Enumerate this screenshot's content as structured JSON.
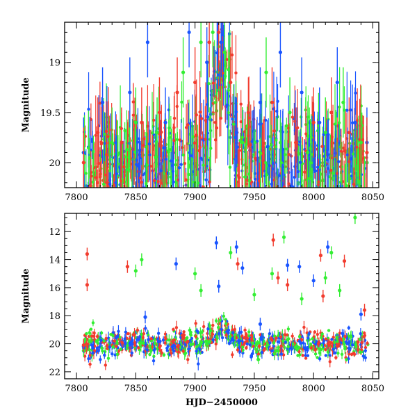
{
  "chart_data": [
    {
      "type": "scatter",
      "title": "",
      "xlabel": "",
      "ylabel": "Magnitude",
      "xlim": [
        7790,
        8055
      ],
      "ylim": [
        20.25,
        18.6
      ],
      "y_inverted": true,
      "xticks": [
        7800,
        7850,
        7900,
        7950,
        8000,
        8050
      ],
      "yticks": [
        19,
        19.5,
        20
      ],
      "ytick_labels": [
        "19",
        "19.5",
        "20"
      ],
      "grid": false,
      "legend": "none",
      "series": [
        {
          "color": "#33ee33",
          "x": [
            7806,
            7830,
            7850,
            7868,
            7890,
            7905,
            7915,
            7925,
            7940,
            7960,
            7980,
            7995,
            8010,
            8025,
            8040,
            8045
          ],
          "y": [
            19.9,
            19.8,
            19.6,
            19.7,
            19.1,
            18.8,
            18.7,
            18.9,
            19.8,
            19.1,
            19.5,
            19.9,
            19.7,
            19.4,
            19.8,
            20.0
          ]
        },
        {
          "color": "#1a55ff",
          "x": [
            7806,
            7822,
            7845,
            7860,
            7875,
            7895,
            7910,
            7922,
            7935,
            7955,
            7972,
            7990,
            8005,
            8020,
            8035,
            8045
          ],
          "y": [
            19.9,
            19.4,
            19.3,
            18.8,
            19.6,
            18.7,
            19.0,
            18.8,
            19.7,
            19.4,
            18.9,
            19.3,
            19.6,
            19.2,
            19.6,
            19.8
          ]
        },
        {
          "color": "#f23c2e",
          "x": [
            7806,
            7818,
            7838,
            7855,
            7870,
            7885,
            7900,
            7912,
            7920,
            7930,
            7945,
            7965,
            7985,
            8000,
            8015,
            8030,
            8045
          ],
          "y": [
            20.0,
            19.7,
            19.8,
            19.6,
            19.5,
            19.3,
            19.2,
            18.8,
            18.7,
            19.2,
            19.5,
            19.4,
            19.8,
            19.6,
            19.5,
            19.7,
            19.9
          ]
        }
      ]
    },
    {
      "type": "scatter",
      "title": "",
      "xlabel": "HJD−2450000",
      "ylabel": "Magnitude",
      "xlim": [
        7790,
        8055
      ],
      "ylim": [
        22.5,
        10.7
      ],
      "y_inverted": true,
      "xticks": [
        7800,
        7850,
        7900,
        7950,
        8000,
        8050
      ],
      "yticks": [
        12,
        14,
        16,
        18,
        20,
        22
      ],
      "ytick_labels": [
        "12",
        "14",
        "16",
        "18",
        "20",
        "22"
      ],
      "grid": false,
      "legend": "none",
      "series": [
        {
          "color": "#33ee33",
          "x": [
            7806,
            7850,
            7855,
            7900,
            7905,
            7930,
            7950,
            7965,
            7975,
            7990,
            8010,
            8015,
            8022,
            8035
          ],
          "y": [
            20.5,
            14.8,
            14.0,
            15.0,
            16.2,
            13.5,
            16.5,
            15.0,
            12.4,
            16.8,
            15.3,
            13.5,
            16.2,
            11.0
          ]
        },
        {
          "color": "#1a55ff",
          "x": [
            7806,
            7858,
            7884,
            7918,
            7920,
            7935,
            7940,
            7955,
            7978,
            7988,
            8000,
            8012,
            8040
          ],
          "y": [
            20.2,
            18.1,
            14.3,
            12.8,
            15.9,
            13.1,
            14.6,
            18.6,
            14.4,
            14.5,
            15.5,
            13.1,
            17.9
          ]
        },
        {
          "color": "#f23c2e",
          "x": [
            7806,
            7809,
            7809,
            7843,
            7890,
            7936,
            7966,
            7970,
            7978,
            8006,
            8008,
            8026,
            8043
          ],
          "y": [
            20.1,
            13.6,
            15.8,
            14.5,
            19.6,
            14.3,
            12.6,
            15.3,
            15.8,
            13.7,
            16.6,
            14.1,
            17.6
          ]
        }
      ]
    }
  ]
}
